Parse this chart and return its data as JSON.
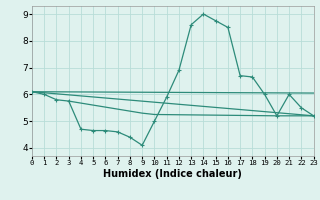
{
  "xlabel": "Humidex (Indice chaleur)",
  "line_color": "#2d8b7a",
  "bg_color": "#dff2ee",
  "grid_color": "#b8ddd8",
  "main_series_x": [
    0,
    1,
    2,
    3,
    4,
    5,
    6,
    7,
    8,
    9,
    10,
    11,
    12,
    13,
    14,
    15,
    16,
    17,
    18,
    19,
    20,
    21,
    22,
    23
  ],
  "main_series_y": [
    6.1,
    6.0,
    5.8,
    5.75,
    4.7,
    4.65,
    4.65,
    4.6,
    4.4,
    4.1,
    5.0,
    5.9,
    6.9,
    8.6,
    9.0,
    8.75,
    8.5,
    6.7,
    6.65,
    6.0,
    5.2,
    6.0,
    5.5,
    5.2
  ],
  "aux_lines": [
    {
      "x": [
        0,
        23
      ],
      "y": [
        6.1,
        5.2
      ]
    },
    {
      "x": [
        0,
        23
      ],
      "y": [
        6.1,
        6.05
      ]
    },
    {
      "x": [
        3,
        9,
        10,
        20,
        23
      ],
      "y": [
        5.75,
        5.3,
        5.25,
        5.2,
        5.2
      ]
    }
  ],
  "xlim": [
    0,
    23
  ],
  "ylim": [
    3.7,
    9.3
  ],
  "yticks": [
    4,
    5,
    6,
    7,
    8,
    9
  ],
  "xtick_labels": [
    "0",
    "1",
    "2",
    "3",
    "4",
    "5",
    "6",
    "7",
    "8",
    "9",
    "10",
    "11",
    "12",
    "13",
    "14",
    "15",
    "16",
    "17",
    "18",
    "19",
    "20",
    "21",
    "22",
    "23"
  ],
  "xtick_vals": [
    0,
    1,
    2,
    3,
    4,
    5,
    6,
    7,
    8,
    9,
    10,
    11,
    12,
    13,
    14,
    15,
    16,
    17,
    18,
    19,
    20,
    21,
    22,
    23
  ]
}
